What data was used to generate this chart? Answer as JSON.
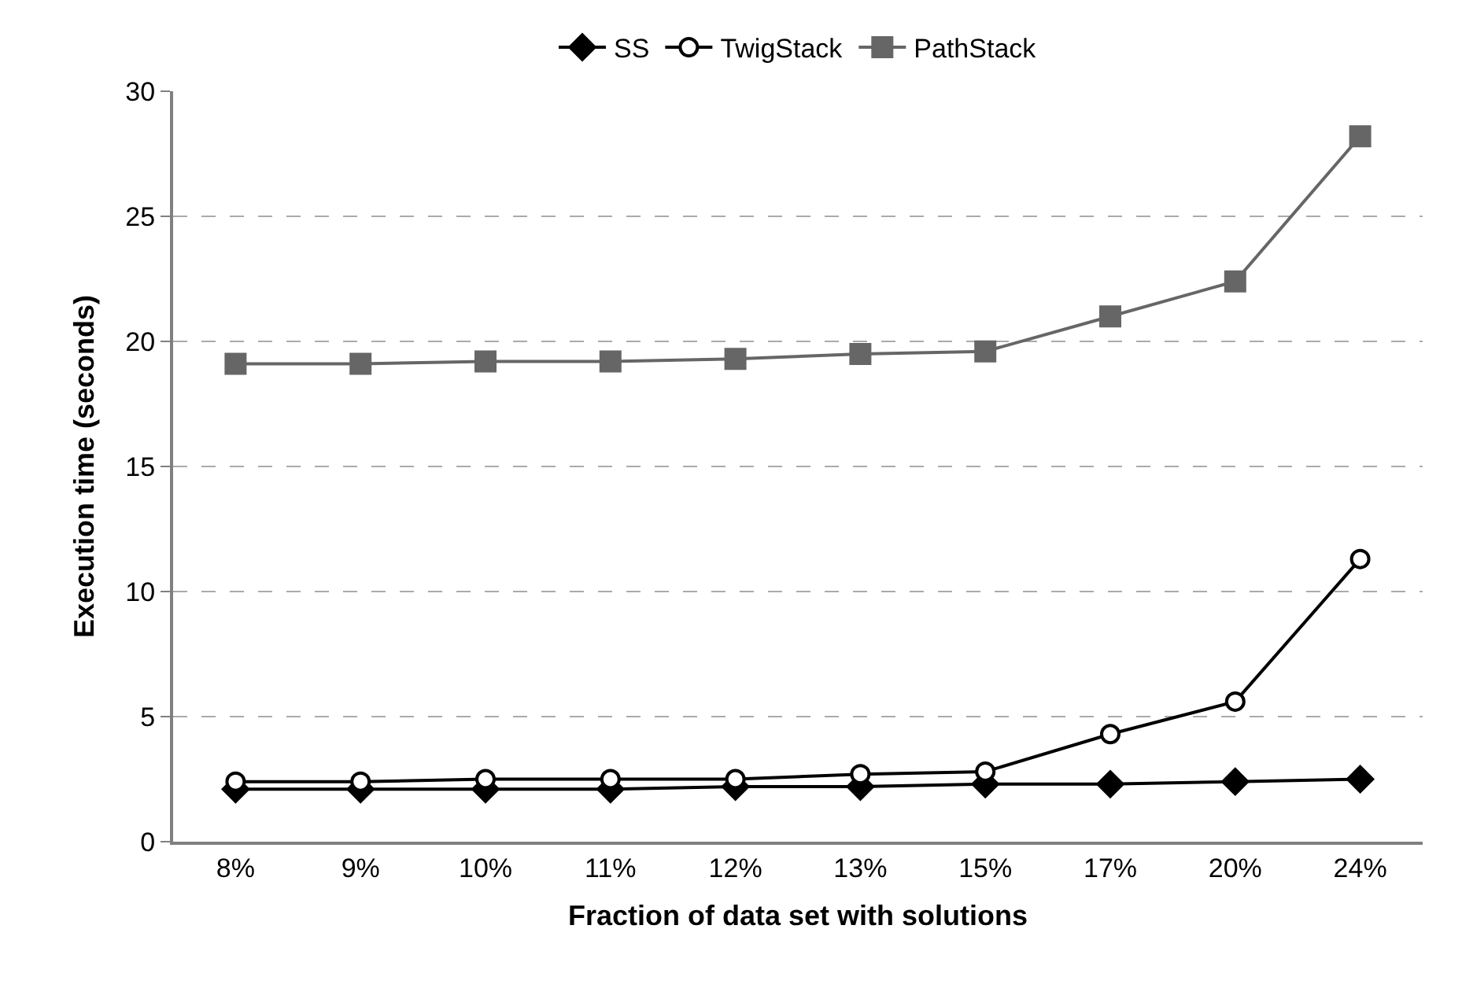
{
  "chart_data": {
    "type": "line",
    "xlabel": "Fraction of data set with solutions",
    "ylabel": "Execution time (seconds)",
    "categories": [
      "8%",
      "9%",
      "10%",
      "11%",
      "12%",
      "13%",
      "15%",
      "17%",
      "20%",
      "24%"
    ],
    "series": [
      {
        "name": "SS",
        "color": "#000000",
        "marker": "diamond",
        "values": [
          2.1,
          2.1,
          2.1,
          2.1,
          2.2,
          2.2,
          2.3,
          2.3,
          2.4,
          2.5
        ]
      },
      {
        "name": "TwigStack",
        "color": "#000000",
        "marker": "circle",
        "values": [
          2.4,
          2.4,
          2.5,
          2.5,
          2.5,
          2.7,
          2.8,
          4.3,
          5.6,
          11.3
        ]
      },
      {
        "name": "PathStack",
        "color": "#666666",
        "marker": "square",
        "values": [
          19.1,
          19.1,
          19.2,
          19.2,
          19.3,
          19.5,
          19.6,
          21.0,
          22.4,
          28.2
        ]
      }
    ],
    "ylim": [
      0,
      30
    ],
    "yticks": [
      0,
      5,
      10,
      15,
      20,
      25,
      30
    ],
    "grid": "y",
    "legend": "top",
    "line_style": "solid"
  }
}
